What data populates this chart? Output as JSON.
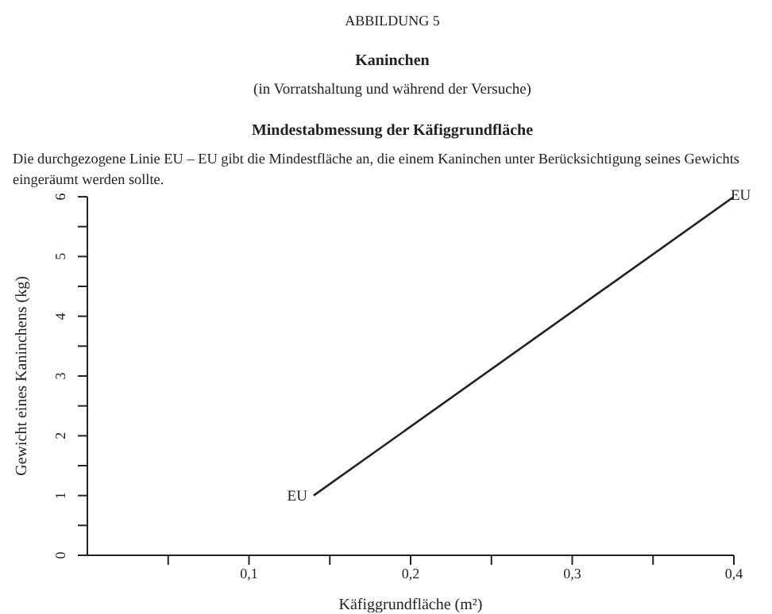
{
  "chart_data": {
    "type": "line",
    "title": "ABBILDUNG 5",
    "subtitle": "Kaninchen",
    "annotations": [
      "(in Vorratshaltung und während der Versuche)",
      "Mindestabmessung der Käfiggrundfläche",
      "Die durchgezogene Linie EU – EU gibt die Mindestfläche an, die einem Kaninchen unter Berücksichtigung seines Gewichts eingeräumt werden sollte.",
      {
        "text": "EU",
        "x": 0.14,
        "y": 1
      },
      {
        "text": "EU",
        "x": 0.4,
        "y": 6
      }
    ],
    "x": [
      0.14,
      0.4
    ],
    "series": [
      {
        "color": "#222222",
        "values": [
          1,
          6
        ]
      }
    ],
    "xlabel": "Käfiggrundfläche (m²)",
    "ylabel": "Gewicht eines Kaninchens (kg)",
    "xlim": [
      0,
      0.4
    ],
    "xticks": [
      {
        "value": 0.05,
        "label": null
      },
      {
        "value": 0.1,
        "label": "0,1"
      },
      {
        "value": 0.15,
        "label": null
      },
      {
        "value": 0.2,
        "label": "0,2"
      },
      {
        "value": 0.25,
        "label": null
      },
      {
        "value": 0.3,
        "label": "0,3"
      },
      {
        "value": 0.35,
        "label": null
      },
      {
        "value": 0.4,
        "label": "0,4"
      }
    ],
    "ylim": [
      0,
      6
    ],
    "yticks": [
      0,
      {
        "value": 0.5,
        "label": null
      },
      1,
      {
        "value": 1.5,
        "label": null
      },
      2,
      {
        "value": 2.5,
        "label": null
      },
      3,
      {
        "value": 3.5,
        "label": null
      },
      4,
      {
        "value": 4.5,
        "label": null
      },
      5,
      {
        "value": 5.5,
        "label": null
      },
      6
    ],
    "grid": false,
    "legend": false,
    "marker": "none",
    "line_style": "solid"
  }
}
